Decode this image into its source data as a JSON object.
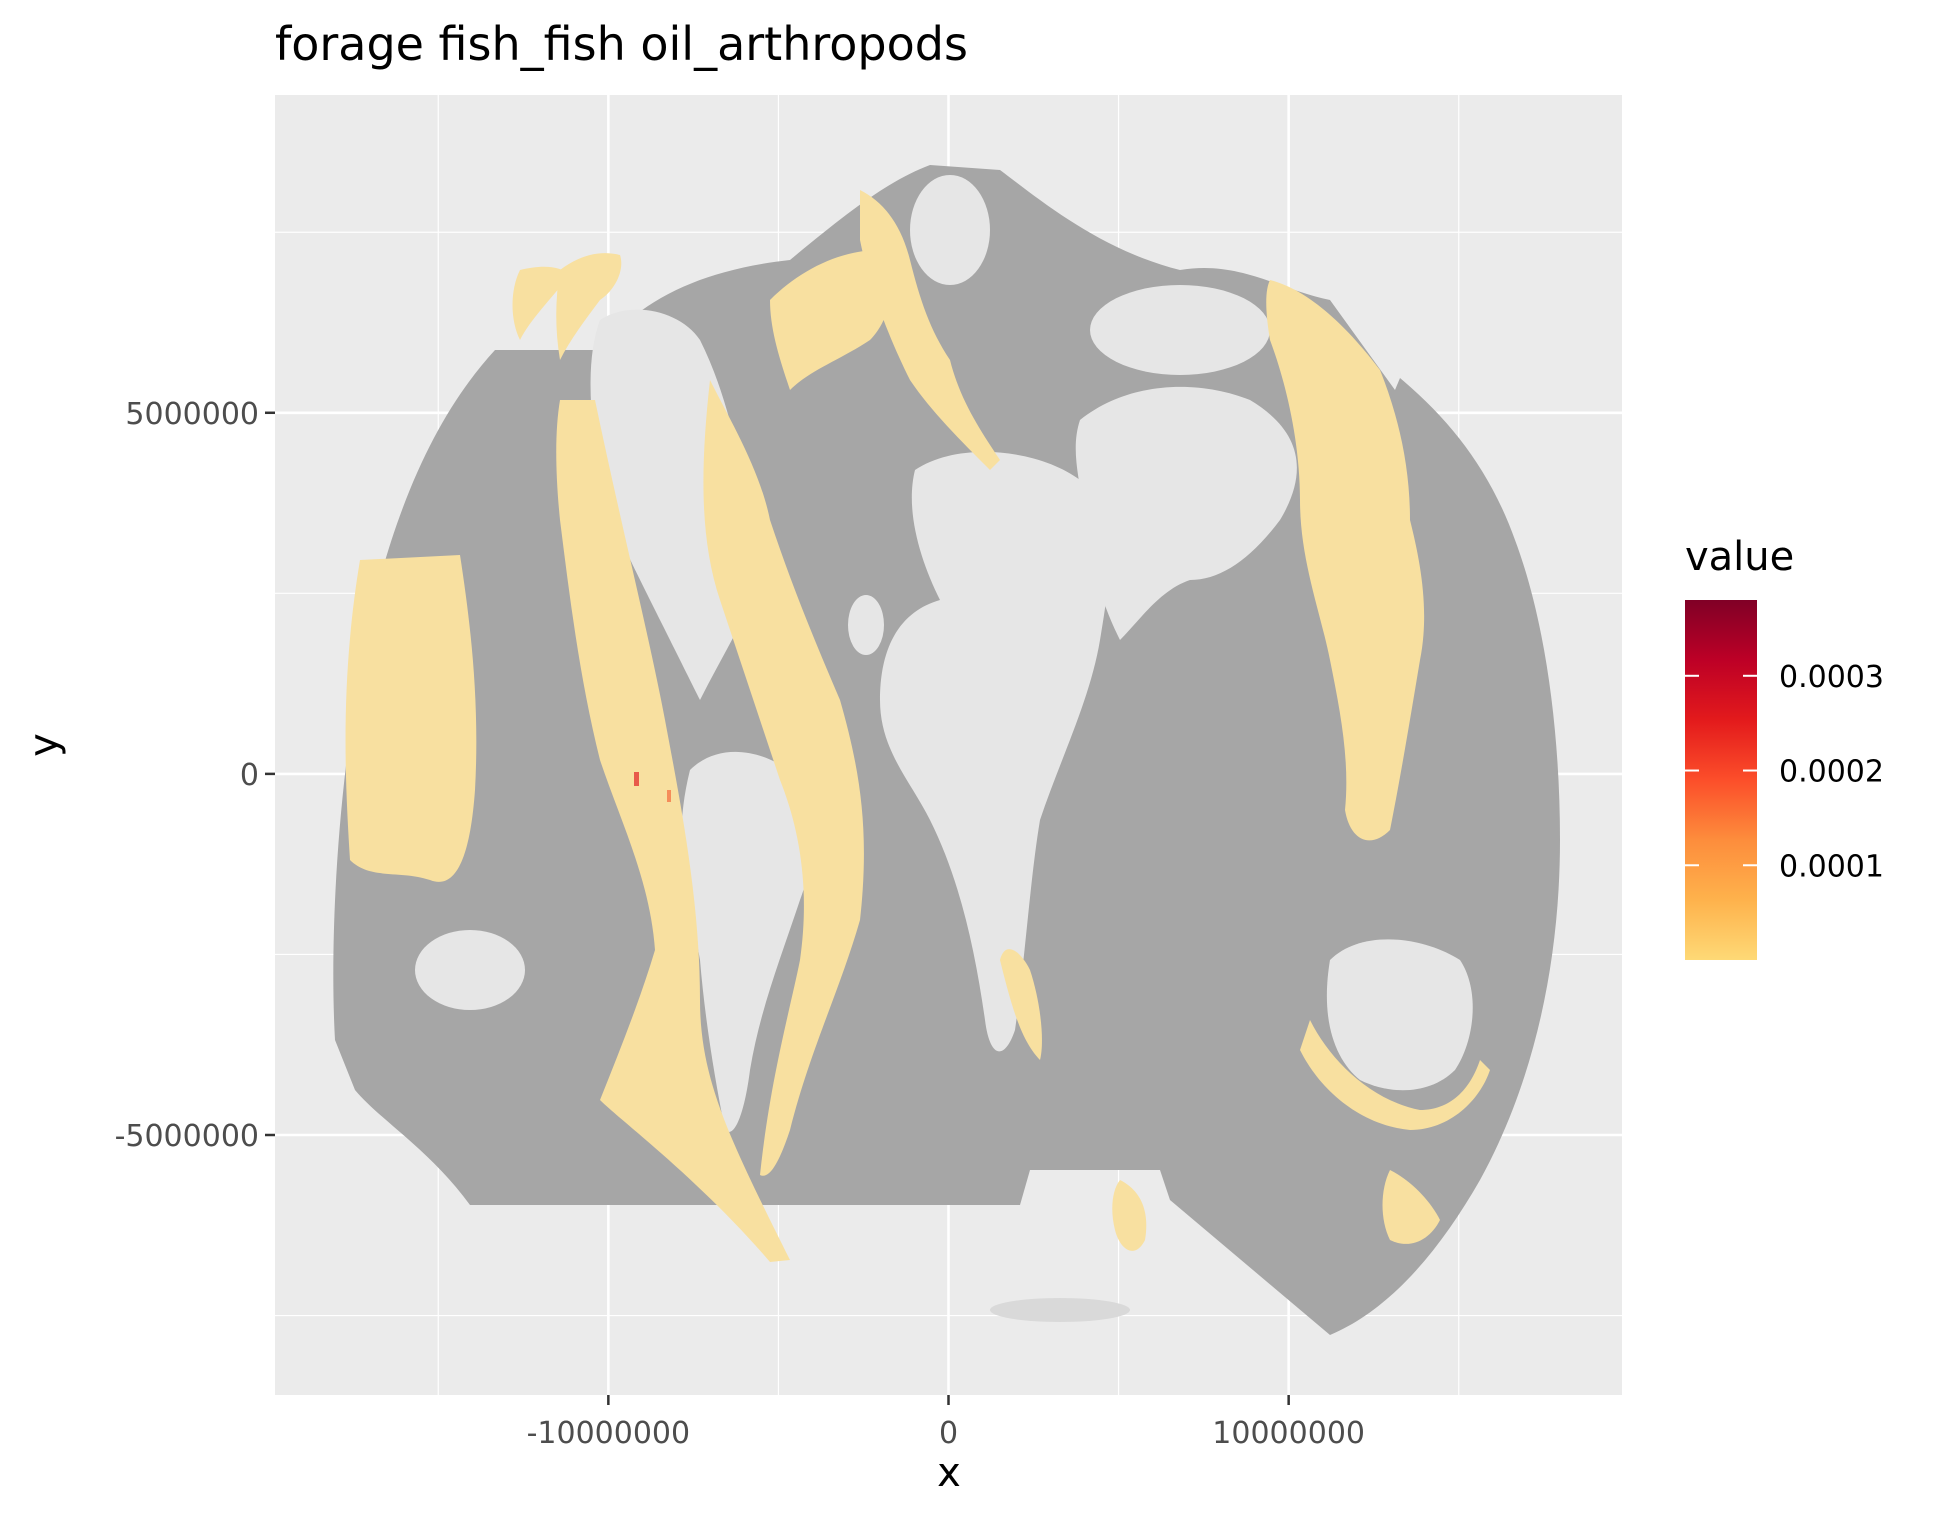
{
  "chart_data": {
    "type": "heatmap",
    "title": "forage fish_fish oil_arthropods",
    "xlabel": "x",
    "ylabel": "y",
    "x_ticks": [
      {
        "value": -10000000,
        "label": "-10000000"
      },
      {
        "value": 0,
        "label": "0"
      },
      {
        "value": 10000000,
        "label": "10000000"
      }
    ],
    "y_ticks": [
      {
        "value": 5000000,
        "label": "5000000"
      },
      {
        "value": 0,
        "label": "0"
      },
      {
        "value": -5000000,
        "label": "-5000000"
      }
    ],
    "xlim": [
      -19800000,
      19800000
    ],
    "ylim": [
      -8600000,
      9400000
    ],
    "grid": true,
    "legend": {
      "title": "value",
      "position": "right",
      "range": [
        0,
        0.00038
      ],
      "ticks": [
        {
          "value": 0.0001,
          "label": "0.0001"
        },
        {
          "value": 0.0002,
          "label": "0.0002"
        },
        {
          "value": 0.0003,
          "label": "0.0003"
        }
      ],
      "colors": [
        "#fed976",
        "#feb24c",
        "#fd8d3c",
        "#fc4e2a",
        "#e31a1c",
        "#bd0026",
        "#800026"
      ]
    },
    "colors": {
      "panel_background": "#ebebeb",
      "ocean_no_data": "#a6a6a6",
      "low_value": "#f8e0a0",
      "land": "#ebebeb"
    },
    "note": "Global raster map of forage fish / fish oil / arthropods values; most ocean cells near zero (pale yellow), small hotspot near 0.0003 off western South America."
  }
}
